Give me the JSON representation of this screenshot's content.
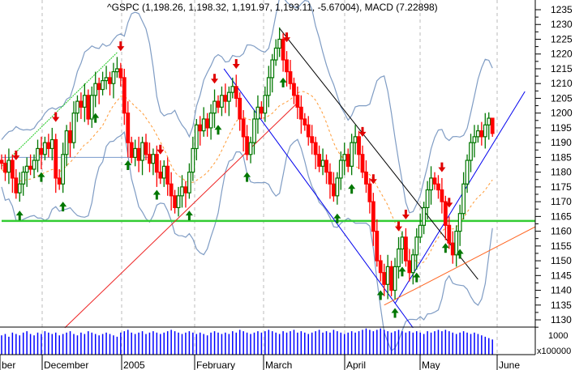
{
  "chart_data": {
    "type": "candlestick",
    "title": "^GSPC (1,198.26, 1,198.32, 1,191.97, 1,193.11, -5.67004), MACD (7.22898)",
    "x_tick_labels": [
      "ber",
      "December",
      "2005",
      "February",
      "March",
      "April",
      "May",
      "June"
    ],
    "y_ticks": [
      1130,
      1135,
      1140,
      1145,
      1150,
      1155,
      1160,
      1165,
      1170,
      1175,
      1180,
      1185,
      1190,
      1195,
      1200,
      1205,
      1210,
      1215,
      1220,
      1225,
      1230,
      1235
    ],
    "ylim": [
      1127,
      1238
    ],
    "volume_unit_label": "x100000",
    "volume_tick_label": "1000",
    "grid": "vertical dashed at month starts",
    "last_candle": {
      "open": 1198.26,
      "high": 1198.32,
      "low": 1191.97,
      "close": 1193.11,
      "change": -5.67004
    },
    "closes": [
      1183,
      1180,
      1184,
      1178,
      1173,
      1176,
      1180,
      1182,
      1181,
      1184,
      1188,
      1186,
      1190,
      1188,
      1191,
      1178,
      1176,
      1186,
      1194,
      1190,
      1200,
      1204,
      1202,
      1206,
      1198,
      1206,
      1210,
      1208,
      1211,
      1212,
      1210,
      1214,
      1215,
      1212,
      1200,
      1190,
      1185,
      1188,
      1184,
      1190,
      1186,
      1183,
      1186,
      1180,
      1178,
      1182,
      1176,
      1172,
      1168,
      1172,
      1175,
      1173,
      1180,
      1188,
      1196,
      1194,
      1198,
      1195,
      1200,
      1204,
      1202,
      1206,
      1204,
      1207,
      1209,
      1205,
      1198,
      1192,
      1186,
      1190,
      1198,
      1202,
      1200,
      1206,
      1212,
      1218,
      1222,
      1225,
      1218,
      1214,
      1210,
      1206,
      1202,
      1198,
      1196,
      1192,
      1190,
      1186,
      1182,
      1184,
      1180,
      1176,
      1172,
      1178,
      1184,
      1186,
      1182,
      1190,
      1192,
      1186,
      1180,
      1176,
      1170,
      1160,
      1150,
      1146,
      1142,
      1148,
      1140,
      1148,
      1154,
      1158,
      1150,
      1146,
      1152,
      1158,
      1162,
      1168,
      1174,
      1178,
      1176,
      1174,
      1170,
      1162,
      1156,
      1152,
      1160,
      1166,
      1176,
      1184,
      1190,
      1192,
      1194,
      1192,
      1196,
      1198.26,
      1193.11
    ],
    "volume": [
      14,
      15,
      13,
      16,
      15,
      14,
      16,
      17,
      15,
      14,
      16,
      15,
      17,
      16,
      15,
      16,
      14,
      15,
      16,
      17,
      15,
      14,
      16,
      15,
      17,
      16,
      15,
      14,
      15,
      16,
      15,
      14,
      13,
      16,
      17,
      18,
      16,
      15,
      16,
      17,
      15,
      16,
      17,
      16,
      15,
      16,
      17,
      18,
      17,
      16,
      15,
      16,
      17,
      16,
      15,
      16,
      15,
      14,
      16,
      17,
      16,
      15,
      16,
      15,
      17,
      16,
      18,
      17,
      16,
      15,
      16,
      17,
      16,
      17,
      18,
      17,
      16,
      15,
      17,
      16,
      17,
      18,
      16,
      17,
      16,
      15,
      16,
      17,
      18,
      16,
      17,
      16,
      18,
      17,
      16,
      15,
      16,
      17,
      16,
      17,
      18,
      19,
      18,
      17,
      18,
      19,
      18,
      17,
      16,
      17,
      18,
      17,
      16,
      17,
      16,
      17,
      16,
      15,
      17,
      16,
      17,
      18,
      17,
      18,
      17,
      16,
      15,
      16,
      17,
      16,
      15,
      16,
      15,
      14,
      13,
      12,
      11
    ],
    "signals_down": [
      4,
      15,
      33,
      44,
      59,
      65,
      79,
      100,
      103,
      110,
      112,
      122,
      124
    ],
    "signals_up": [
      5,
      11,
      17,
      26,
      35,
      43,
      52,
      60,
      68,
      78,
      93,
      97,
      105,
      109,
      111,
      115,
      123,
      127
    ],
    "trendlines": [
      {
        "color": "#22cc22",
        "from": [
          0,
          1182
        ],
        "to": [
          32,
          1220.5
        ],
        "style": "dotted"
      },
      {
        "color": "#7799cc",
        "from": [
          0,
          1185
        ],
        "to": [
          43,
          1185
        ]
      },
      {
        "color": "#33cc33",
        "from": [
          0,
          1163.5
        ],
        "to": [
          148,
          1163.5
        ],
        "thick": true
      },
      {
        "color": "#ee2222",
        "from": [
          17.5,
          1127.3
        ],
        "to": [
          81.6,
          1203
        ]
      },
      {
        "color": "#0000ee",
        "from": [
          61.6,
          1215
        ],
        "to": [
          114,
          1127.3
        ]
      },
      {
        "color": "#000000",
        "from": [
          77,
          1228.7
        ],
        "to": [
          132,
          1143.7
        ]
      },
      {
        "color": "#0000ee",
        "from": [
          109,
          1135.5
        ],
        "to": [
          145,
          1207.3
        ]
      },
      {
        "color": "#ff6622",
        "from": [
          106,
          1135
        ],
        "to": [
          148,
          1161.5
        ]
      }
    ],
    "colors": {
      "up": "#007700",
      "down": "#ff0000",
      "bands": "#7f9cc4",
      "moving_average": "#ff9933",
      "volume": "#0000ff"
    }
  }
}
